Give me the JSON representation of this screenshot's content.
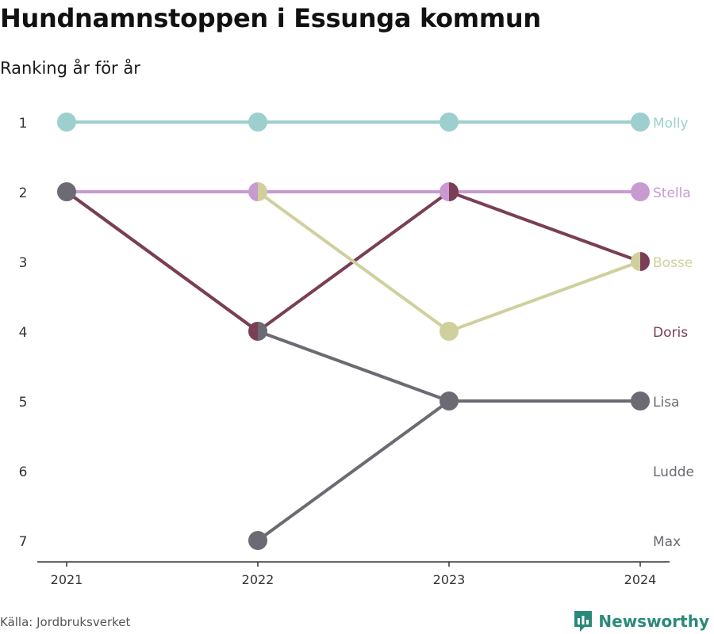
{
  "header": {
    "title": "Hundnamnstoppen i Essunga kommun",
    "subtitle": "Ranking år för år"
  },
  "footer": {
    "source": "Källa: Jordbruksverket",
    "brand": "Newsworthy"
  },
  "colors": {
    "axis": "#333333",
    "tick_text": "#333333",
    "brand": "#2a8a7a"
  },
  "chart_data": {
    "type": "line",
    "subtype": "bump",
    "x": [
      "2021",
      "2022",
      "2023",
      "2024"
    ],
    "y_ticks": [
      1,
      2,
      3,
      4,
      5,
      6,
      7
    ],
    "ylim": [
      1,
      7
    ],
    "y_reversed": true,
    "grid": false,
    "legend": "end-labels",
    "series": [
      {
        "name": "Molly",
        "color": "#9ccfcd",
        "values": [
          1,
          1,
          1,
          1
        ]
      },
      {
        "name": "Stella",
        "color": "#c99ad1",
        "values": [
          2,
          2,
          2,
          2
        ]
      },
      {
        "name": "Bosse",
        "color": "#cfd09d",
        "values": [
          2,
          2,
          4,
          3
        ]
      },
      {
        "name": "Doris",
        "color": "#7a3e55",
        "values": [
          2,
          4,
          2,
          3
        ]
      },
      {
        "name": "Lisa",
        "color": "#6c6a72",
        "values": [
          2,
          4,
          5,
          5
        ]
      },
      {
        "name": "Ludde",
        "color": "#6c6a72",
        "values": [
          null,
          null,
          null,
          null
        ]
      },
      {
        "name": "Max",
        "color": "#6c6a72",
        "values": [
          null,
          7,
          5,
          5
        ]
      }
    ],
    "label_ranks": {
      "Molly": 1,
      "Stella": 2,
      "Bosse": 3,
      "Doris": 4,
      "Lisa": 5,
      "Ludde": 6,
      "Max": 7
    }
  }
}
